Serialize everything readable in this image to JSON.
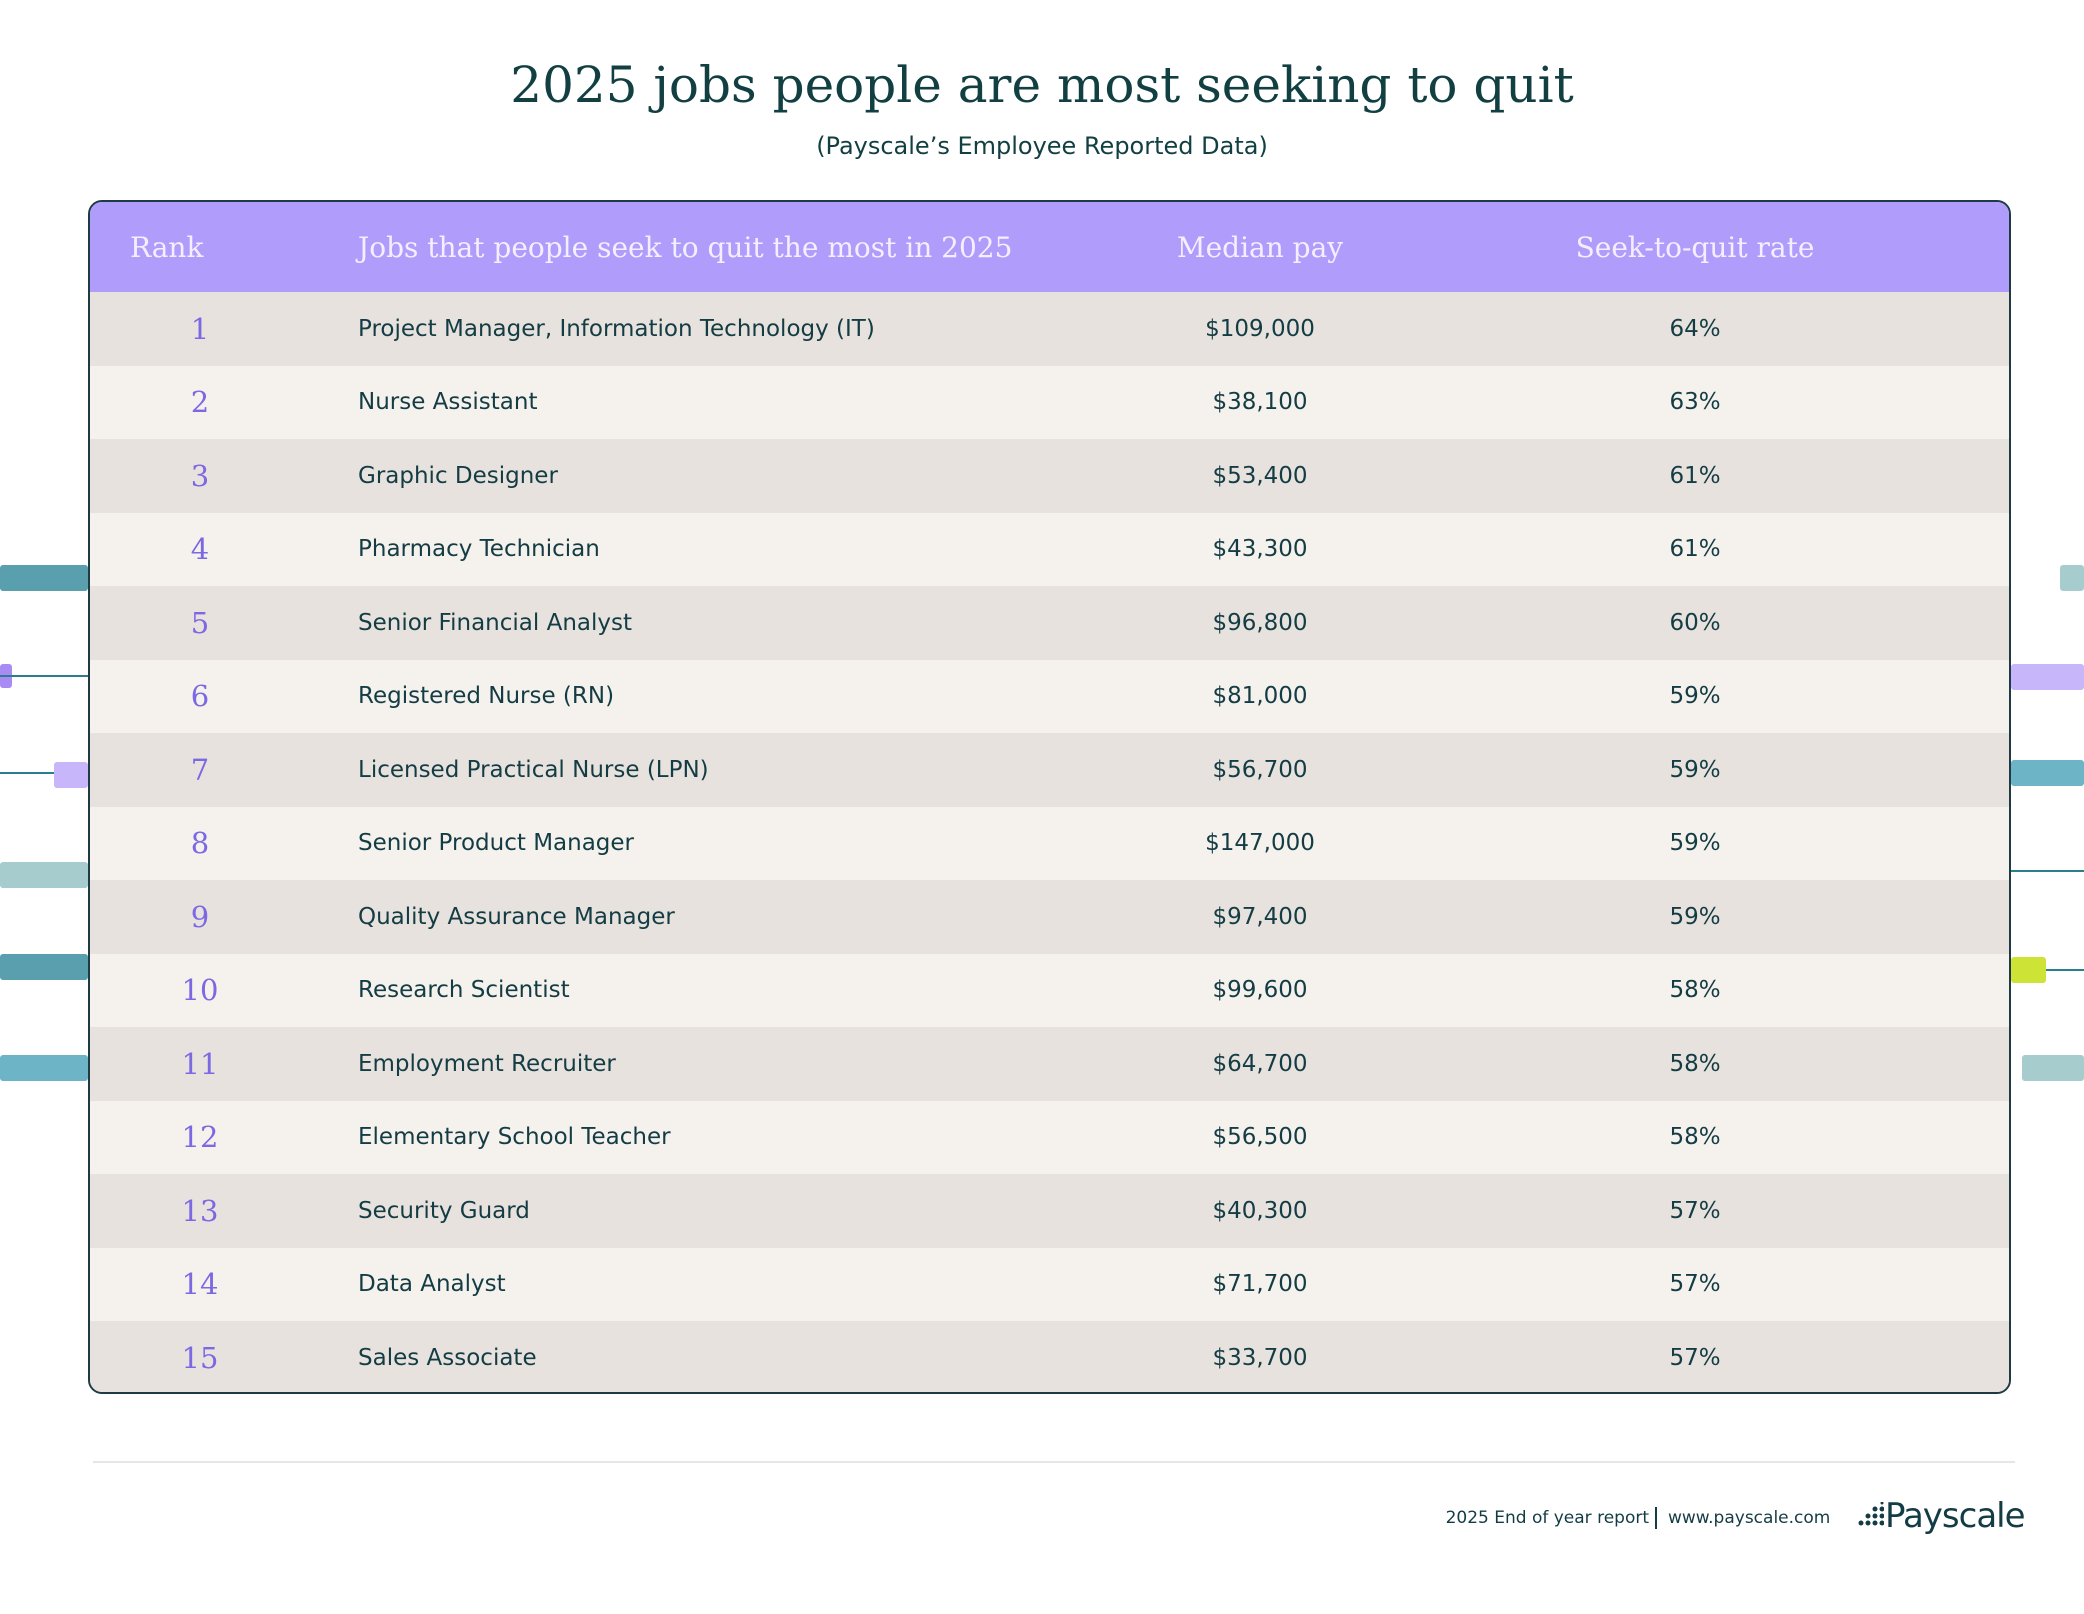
{
  "header": {
    "title": "2025 jobs people are most seeking to quit",
    "subtitle": "(Payscale’s Employee Reported Data)"
  },
  "table": {
    "columns": [
      "Rank",
      "Jobs that people seek to quit the most in 2025",
      "Median pay",
      "Seek-to-quit rate"
    ],
    "rows": [
      [
        1,
        "Project Manager, Information Technology (IT)",
        "$109,000",
        "64%"
      ],
      [
        2,
        "Nurse Assistant",
        "$38,100",
        "63%"
      ],
      [
        3,
        "Graphic Designer",
        "$53,400",
        "61%"
      ],
      [
        4,
        "Pharmacy Technician",
        "$43,300",
        "61%"
      ],
      [
        5,
        "Senior Financial Analyst",
        "$96,800",
        "60%"
      ],
      [
        6,
        "Registered Nurse (RN)",
        "$81,000",
        "59%"
      ],
      [
        7,
        "Licensed Practical Nurse (LPN)",
        "$56,700",
        "59%"
      ],
      [
        8,
        "Senior Product Manager",
        "$147,000",
        "59%"
      ],
      [
        9,
        "Quality Assurance Manager",
        "$97,400",
        "59%"
      ],
      [
        10,
        "Research Scientist",
        "$99,600",
        "58%"
      ],
      [
        11,
        "Employment Recruiter",
        "$64,700",
        "58%"
      ],
      [
        12,
        "Elementary School Teacher",
        "$56,500",
        "58%"
      ],
      [
        13,
        "Security Guard",
        "$40,300",
        "57%"
      ],
      [
        14,
        "Data Analyst",
        "$71,700",
        "57%"
      ],
      [
        15,
        "Sales Associate",
        "$33,700",
        "57%"
      ]
    ]
  },
  "footer": {
    "report": "2025 End of year report",
    "url": "www.payscale.com",
    "logo": "Payscale"
  }
}
